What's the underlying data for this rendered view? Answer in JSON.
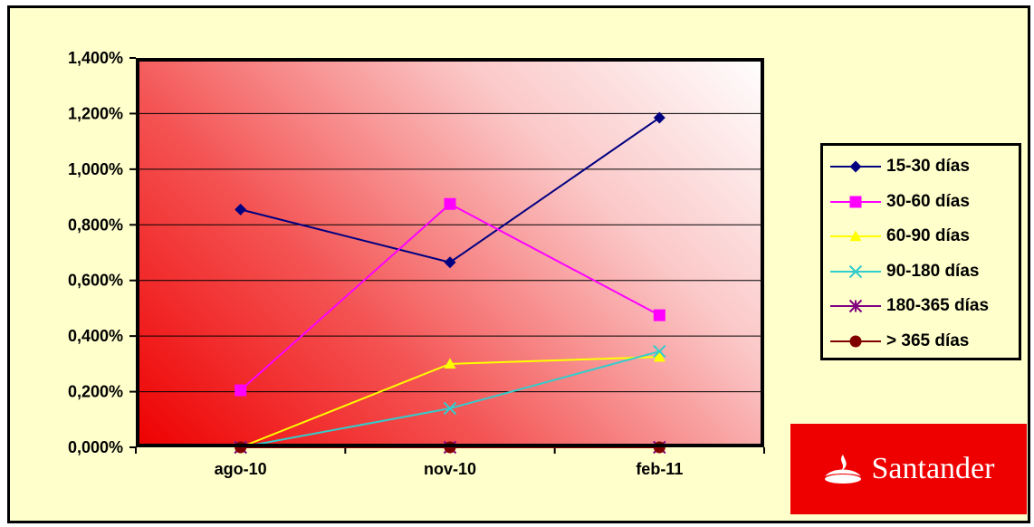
{
  "chart_data": {
    "type": "line",
    "categories": [
      "ago-10",
      "nov-10",
      "feb-11"
    ],
    "ylim": [
      0,
      1.4
    ],
    "yticks": [
      "0,000%",
      "0,200%",
      "0,400%",
      "0,600%",
      "0,800%",
      "1,000%",
      "1,200%",
      "1,400%"
    ],
    "y_unit": "%",
    "grid": true,
    "legend_position": "right",
    "series": [
      {
        "name": "15-30 días",
        "values": [
          0.855,
          0.665,
          1.185
        ],
        "color": "#000080",
        "marker": "diamond"
      },
      {
        "name": "30-60 días",
        "values": [
          0.205,
          0.875,
          0.475
        ],
        "color": "#ff00ff",
        "marker": "square"
      },
      {
        "name": "60-90 días",
        "values": [
          0.0,
          0.3,
          0.325
        ],
        "color": "#ffff00",
        "marker": "triangle"
      },
      {
        "name": "90-180 días",
        "values": [
          0.0,
          0.14,
          0.345
        ],
        "color": "#33cccc",
        "marker": "x"
      },
      {
        "name": "180-365 días",
        "values": [
          0.0,
          0.0,
          0.0
        ],
        "color": "#800080",
        "marker": "star"
      },
      {
        "name": "> 365 días",
        "values": [
          0.0,
          0.0,
          0.0
        ],
        "color": "#800000",
        "marker": "circle"
      }
    ]
  },
  "logo": {
    "text": "Santander",
    "background": "#ee0000"
  }
}
